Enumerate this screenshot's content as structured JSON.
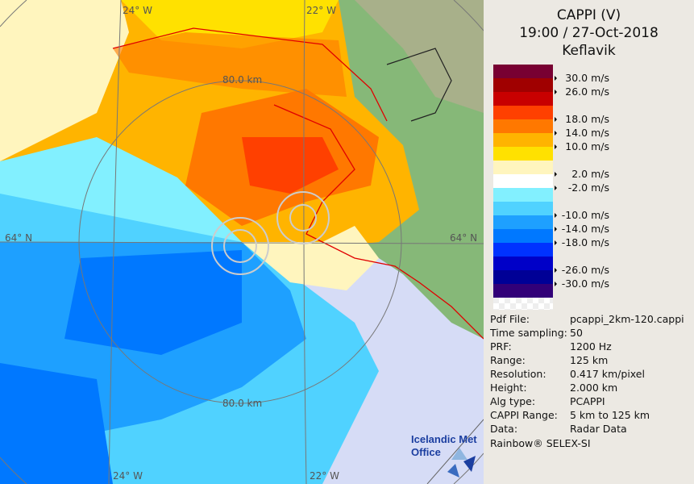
{
  "header": {
    "product": "CAPPI (V)",
    "datetime": "19:00 / 27-Oct-2018",
    "site": "Keflavik"
  },
  "legend": {
    "unit": "m/s",
    "colors": [
      "#780032",
      "#a00000",
      "#c80000",
      "#ff4000",
      "#ff7800",
      "#ffb400",
      "#ffe100",
      "#fff5be",
      "#ffffff",
      "#82f0ff",
      "#50d2ff",
      "#1ea0ff",
      "#0078ff",
      "#0032ff",
      "#0000c8",
      "#000096",
      "#320078"
    ],
    "labels": [
      "30.0 m/s",
      "26.0 m/s",
      "18.0 m/s",
      "14.0 m/s",
      "10.0 m/s",
      "2.0 m/s",
      "-2.0 m/s",
      "-10.0 m/s",
      "-14.0 m/s",
      "-18.0 m/s",
      "-26.0 m/s",
      "-30.0 m/s"
    ]
  },
  "info": [
    {
      "key": "Pdf File:",
      "value": "pcappi_2km-120.cappi"
    },
    {
      "key": "Time sampling:",
      "value": "50"
    },
    {
      "key": "PRF:",
      "value": "1200 Hz"
    },
    {
      "key": "Range:",
      "value": "125 km"
    },
    {
      "key": "Resolution:",
      "value": "0.417 km/pixel"
    },
    {
      "key": "Height:",
      "value": "2.000 km"
    },
    {
      "key": "Alg type:",
      "value": "PCAPPI"
    },
    {
      "key": "CAPPI Range:",
      "value": "5 km to 125 km"
    },
    {
      "key": "Data:",
      "value": "Radar Data"
    }
  ],
  "credit": "Rainbow® SELEX-SI",
  "map": {
    "labels": {
      "lon_top_left": "24° W",
      "lon_top_right": "22° W",
      "lat_left": "64° N",
      "lat_right": "64° N",
      "ring_top": "80.0 km",
      "ring_bottom": "80.0 km",
      "lon_bottom_left": "24° W",
      "lon_bottom_right": "22° W"
    },
    "logo": {
      "line1": "Icelandic Met",
      "line2": "Office"
    }
  }
}
